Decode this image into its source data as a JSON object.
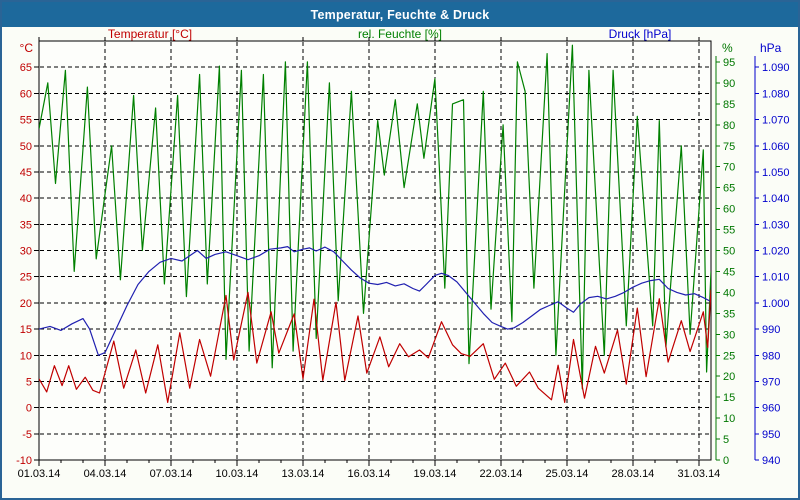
{
  "window": {
    "title": "Temperatur, Feuchte & Druck"
  },
  "colors": {
    "title_bar": "#1d699c",
    "frame_border": "#2a6496",
    "page_background": "#fbfdf7",
    "grid": "#000000",
    "x_labels": "#000000",
    "temperature": "#c00000",
    "humidity": "#008000",
    "humidity_labels": "#007700",
    "pressure": "#2020b0",
    "pressure_labels": "#0000cc"
  },
  "chart_data": {
    "type": "line",
    "title": "Temperatur, Feuchte & Druck",
    "legend": [
      {
        "id": "temp",
        "label": "Temperatur [°C]",
        "color": "#c00000"
      },
      {
        "id": "hum",
        "label": "rel. Feuchte [%]",
        "color": "#008000"
      },
      {
        "id": "pres",
        "label": "Druck [hPa]",
        "color": "#0000cc"
      }
    ],
    "grid": {
      "dashed": true,
      "color": "#000000",
      "x_every_days": 3,
      "y_every_temp": 5
    },
    "axes": {
      "x": {
        "unit": "date",
        "range_days": [
          0,
          30.55
        ],
        "tick_days": [
          0,
          3,
          6,
          9,
          12,
          15,
          18,
          21,
          24,
          27,
          30
        ],
        "tick_labels": [
          "01.03.14",
          "04.03.14",
          "07.03.14",
          "10.03.14",
          "13.03.14",
          "16.03.14",
          "19.03.14",
          "22.03.14",
          "25.03.14",
          "28.03.14",
          "31.03.14"
        ],
        "minor_tick_step_days": 1
      },
      "temperature": {
        "unit": "°C",
        "range": [
          -10,
          70
        ],
        "ticks": [
          -10,
          -5,
          0,
          5,
          10,
          15,
          20,
          25,
          30,
          35,
          40,
          45,
          50,
          55,
          60,
          65
        ],
        "color": "#c00000"
      },
      "humidity": {
        "unit": "%",
        "range": [
          0,
          100
        ],
        "ticks": [
          0,
          5,
          10,
          15,
          20,
          25,
          30,
          35,
          40,
          45,
          50,
          55,
          60,
          65,
          70,
          75,
          80,
          85,
          90,
          95
        ],
        "color": "#007700"
      },
      "pressure": {
        "unit": "hPa",
        "range": [
          940,
          1100
        ],
        "ticks": [
          940,
          950,
          960,
          970,
          980,
          990,
          1000,
          1010,
          1020,
          1030,
          1040,
          1050,
          1060,
          1070,
          1080,
          1090
        ],
        "tick_labels": [
          "940",
          "950",
          "960",
          "970",
          "980",
          "990",
          "1.000",
          "1.010",
          "1.020",
          "1.030",
          "1.040",
          "1.050",
          "1.060",
          "1.070",
          "1.080",
          "1.090"
        ],
        "color": "#0000cc"
      }
    },
    "series": [
      {
        "name": "rel. Feuchte",
        "axis": "humidity",
        "color": "#008000",
        "points": [
          [
            0,
            79
          ],
          [
            0.4,
            90
          ],
          [
            0.75,
            66
          ],
          [
            1.2,
            93
          ],
          [
            1.6,
            45
          ],
          [
            2.2,
            89
          ],
          [
            2.6,
            48
          ],
          [
            3.3,
            75
          ],
          [
            3.7,
            43
          ],
          [
            4.3,
            87
          ],
          [
            4.7,
            50
          ],
          [
            5.3,
            84
          ],
          [
            5.7,
            42
          ],
          [
            6.3,
            87
          ],
          [
            6.7,
            39
          ],
          [
            7.3,
            92
          ],
          [
            7.65,
            42
          ],
          [
            8.2,
            94
          ],
          [
            8.5,
            24
          ],
          [
            9.2,
            93
          ],
          [
            9.55,
            26
          ],
          [
            10.2,
            92
          ],
          [
            10.6,
            22
          ],
          [
            11.2,
            95
          ],
          [
            11.55,
            26
          ],
          [
            12.2,
            95
          ],
          [
            12.6,
            29
          ],
          [
            13.2,
            90
          ],
          [
            13.6,
            38
          ],
          [
            14.2,
            88
          ],
          [
            14.75,
            35
          ],
          [
            15.4,
            81
          ],
          [
            15.7,
            68
          ],
          [
            16.2,
            86
          ],
          [
            16.6,
            65
          ],
          [
            17.2,
            85
          ],
          [
            17.5,
            72
          ],
          [
            18.0,
            91
          ],
          [
            18.2,
            70
          ],
          [
            18.45,
            41
          ],
          [
            18.8,
            85
          ],
          [
            19.3,
            86
          ],
          [
            19.55,
            23
          ],
          [
            20.2,
            88
          ],
          [
            20.55,
            36
          ],
          [
            21.1,
            80
          ],
          [
            21.5,
            33
          ],
          [
            21.75,
            95
          ],
          [
            22.1,
            88
          ],
          [
            22.5,
            41
          ],
          [
            23.1,
            97
          ],
          [
            23.5,
            25
          ],
          [
            24.25,
            99
          ],
          [
            24.7,
            17
          ],
          [
            25.0,
            93
          ],
          [
            25.7,
            25
          ],
          [
            26.1,
            93
          ],
          [
            26.7,
            32
          ],
          [
            27.2,
            82
          ],
          [
            27.9,
            32
          ],
          [
            28.2,
            81
          ],
          [
            28.5,
            27
          ],
          [
            29.2,
            75
          ],
          [
            29.6,
            30
          ],
          [
            30.2,
            74
          ],
          [
            30.35,
            21
          ],
          [
            30.55,
            45
          ]
        ]
      },
      {
        "name": "Druck",
        "axis": "pressure",
        "color": "#2020b0",
        "points": [
          [
            0,
            990
          ],
          [
            0.5,
            991
          ],
          [
            1.0,
            989.5
          ],
          [
            1.5,
            992
          ],
          [
            2.0,
            994
          ],
          [
            2.3,
            990
          ],
          [
            2.7,
            980
          ],
          [
            3.0,
            981
          ],
          [
            3.5,
            990
          ],
          [
            4.0,
            999
          ],
          [
            4.5,
            1007
          ],
          [
            5.0,
            1012
          ],
          [
            5.5,
            1015.5
          ],
          [
            6.0,
            1017
          ],
          [
            6.5,
            1016
          ],
          [
            7.2,
            1020
          ],
          [
            7.6,
            1017
          ],
          [
            8.0,
            1018.5
          ],
          [
            8.5,
            1019.5
          ],
          [
            9.0,
            1018
          ],
          [
            9.5,
            1016.5
          ],
          [
            10.0,
            1018
          ],
          [
            10.5,
            1020.5
          ],
          [
            11.0,
            1021
          ],
          [
            11.3,
            1021.5
          ],
          [
            11.6,
            1019.5
          ],
          [
            12.0,
            1020.5
          ],
          [
            12.3,
            1021
          ],
          [
            12.6,
            1019.8
          ],
          [
            13.0,
            1021.3
          ],
          [
            13.4,
            1019.5
          ],
          [
            13.8,
            1016
          ],
          [
            14.2,
            1012.5
          ],
          [
            14.6,
            1009.5
          ],
          [
            15.0,
            1007.5
          ],
          [
            15.4,
            1007
          ],
          [
            15.8,
            1007.8
          ],
          [
            16.2,
            1006.5
          ],
          [
            16.6,
            1007.3
          ],
          [
            17.0,
            1005.5
          ],
          [
            17.3,
            1004.5
          ],
          [
            17.6,
            1007
          ],
          [
            18.0,
            1010.5
          ],
          [
            18.3,
            1011.3
          ],
          [
            18.6,
            1010.5
          ],
          [
            19.0,
            1008
          ],
          [
            19.4,
            1004
          ],
          [
            19.8,
            1000
          ],
          [
            20.2,
            996
          ],
          [
            20.6,
            992.5
          ],
          [
            21.0,
            991
          ],
          [
            21.3,
            990
          ],
          [
            21.6,
            990.5
          ],
          [
            22.0,
            992.5
          ],
          [
            22.4,
            995
          ],
          [
            22.8,
            997.5
          ],
          [
            23.2,
            999
          ],
          [
            23.6,
            1000.4
          ],
          [
            24.0,
            998
          ],
          [
            24.3,
            996.4
          ],
          [
            24.6,
            999.5
          ],
          [
            25.0,
            1002
          ],
          [
            25.4,
            1002.5
          ],
          [
            25.8,
            1001.5
          ],
          [
            26.2,
            1002.5
          ],
          [
            26.6,
            1004
          ],
          [
            27.0,
            1006
          ],
          [
            27.4,
            1007.5
          ],
          [
            27.8,
            1008.5
          ],
          [
            28.2,
            1009
          ],
          [
            28.6,
            1005.5
          ],
          [
            29.0,
            1004
          ],
          [
            29.4,
            1003
          ],
          [
            29.8,
            1003.5
          ],
          [
            30.2,
            1002
          ],
          [
            30.55,
            1000.5
          ]
        ]
      },
      {
        "name": "Temperatur",
        "axis": "temperature",
        "color": "#c00000",
        "points": [
          [
            0,
            5.5
          ],
          [
            0.35,
            3.0
          ],
          [
            0.7,
            8.0
          ],
          [
            1.05,
            4.2
          ],
          [
            1.35,
            8.0
          ],
          [
            1.7,
            3.5
          ],
          [
            2.1,
            5.8
          ],
          [
            2.45,
            3.3
          ],
          [
            2.75,
            2.8
          ],
          [
            3.4,
            12.7
          ],
          [
            3.85,
            3.7
          ],
          [
            4.4,
            11.0
          ],
          [
            4.85,
            2.8
          ],
          [
            5.4,
            12.0
          ],
          [
            5.85,
            1.0
          ],
          [
            6.4,
            14.3
          ],
          [
            6.85,
            3.7
          ],
          [
            7.3,
            13.0
          ],
          [
            7.8,
            6.0
          ],
          [
            8.5,
            21.4
          ],
          [
            8.85,
            9.1
          ],
          [
            9.5,
            22.0
          ],
          [
            9.9,
            8.5
          ],
          [
            10.55,
            18.3
          ],
          [
            10.9,
            10.4
          ],
          [
            11.6,
            17.9
          ],
          [
            12.0,
            5.5
          ],
          [
            12.5,
            20.7
          ],
          [
            12.9,
            5.2
          ],
          [
            13.5,
            20.1
          ],
          [
            13.9,
            5.2
          ],
          [
            14.5,
            17.5
          ],
          [
            14.9,
            6.6
          ],
          [
            15.5,
            13.5
          ],
          [
            15.9,
            7.8
          ],
          [
            16.4,
            12.2
          ],
          [
            16.8,
            9.7
          ],
          [
            17.3,
            11.0
          ],
          [
            17.7,
            9.5
          ],
          [
            18.3,
            16.4
          ],
          [
            18.8,
            12.0
          ],
          [
            19.2,
            10.3
          ],
          [
            19.6,
            9.8
          ],
          [
            20.2,
            12.2
          ],
          [
            20.7,
            5.4
          ],
          [
            21.2,
            8.5
          ],
          [
            21.7,
            4.1
          ],
          [
            22.3,
            6.8
          ],
          [
            22.7,
            3.7
          ],
          [
            23.3,
            1.5
          ],
          [
            23.6,
            8.1
          ],
          [
            23.9,
            1.0
          ],
          [
            24.3,
            13.0
          ],
          [
            24.8,
            1.8
          ],
          [
            25.3,
            11.7
          ],
          [
            25.7,
            6.6
          ],
          [
            26.3,
            14.8
          ],
          [
            26.7,
            4.5
          ],
          [
            27.2,
            19.0
          ],
          [
            27.6,
            5.9
          ],
          [
            28.2,
            20.8
          ],
          [
            28.6,
            8.7
          ],
          [
            29.2,
            16.6
          ],
          [
            29.6,
            10.7
          ],
          [
            30.2,
            18.3
          ],
          [
            30.4,
            11.5
          ],
          [
            30.55,
            22.5
          ]
        ]
      }
    ]
  }
}
